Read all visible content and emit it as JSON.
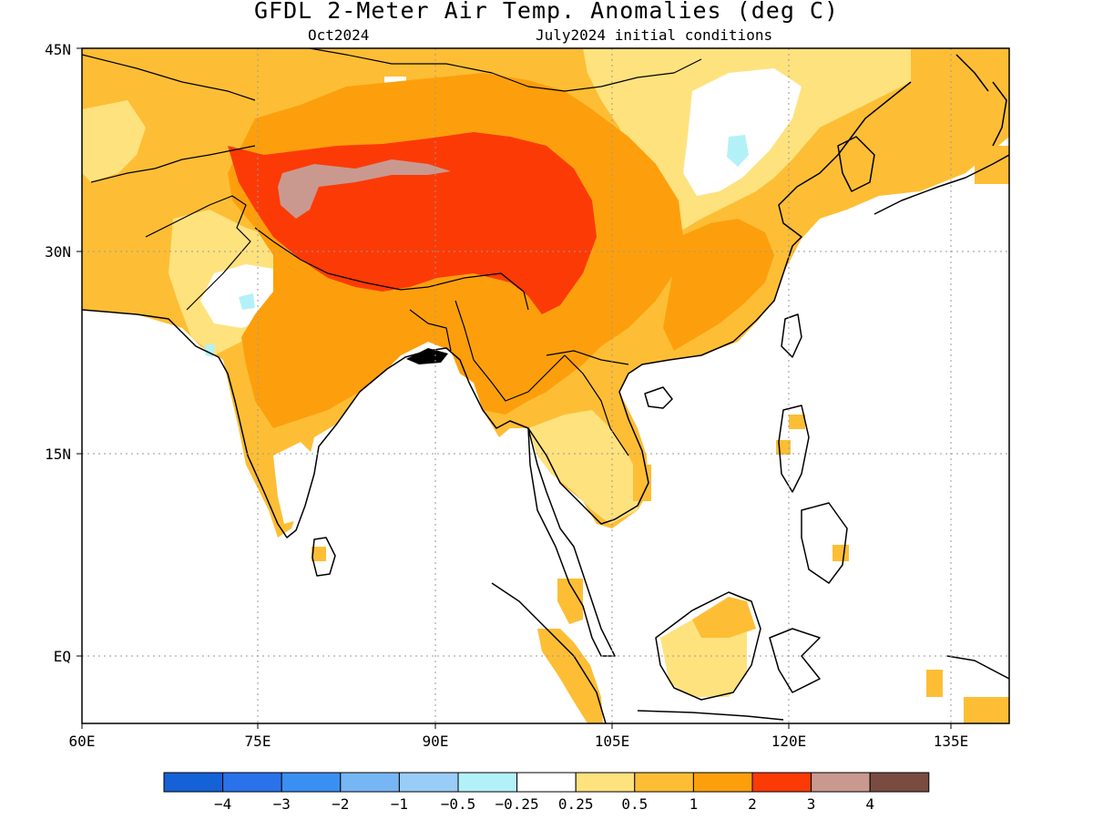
{
  "title": "GFDL 2-Meter Air Temp. Anomalies (deg C)",
  "subtitle_left": "Oct2024",
  "subtitle_right": "July2024 initial conditions",
  "lat_labels": [
    "45N",
    "30N",
    "15N",
    "EQ"
  ],
  "lon_labels": [
    "60E",
    "75E",
    "90E",
    "105E",
    "120E",
    "135E"
  ],
  "colorbar": {
    "colors": [
      "#1561d6",
      "#2a72ea",
      "#3a90f2",
      "#77b6f5",
      "#98cdf7",
      "#b3f1f8",
      "#ffffff",
      "#fee27e",
      "#fdbe35",
      "#fd9f0c",
      "#fc3a06",
      "#c9998f",
      "#7a4c41"
    ],
    "tick_labels": [
      "-4",
      "-3",
      "-2",
      "-1",
      "-0.5",
      "-0.25",
      "0.25",
      "0.5",
      "1",
      "2",
      "3",
      "4"
    ]
  },
  "map": {
    "extent": {
      "lon_min": 60,
      "lon_max": 140,
      "lat_min": -5,
      "lat_max": 45
    },
    "colors": {
      "white": "#ffffff",
      "light_yellow": "#fee27e",
      "light_orange": "#fdbe35",
      "orange": "#fd9f0c",
      "red": "#fc3a06",
      "pink": "#c9998f",
      "light_blue": "#b3f1f8"
    }
  }
}
